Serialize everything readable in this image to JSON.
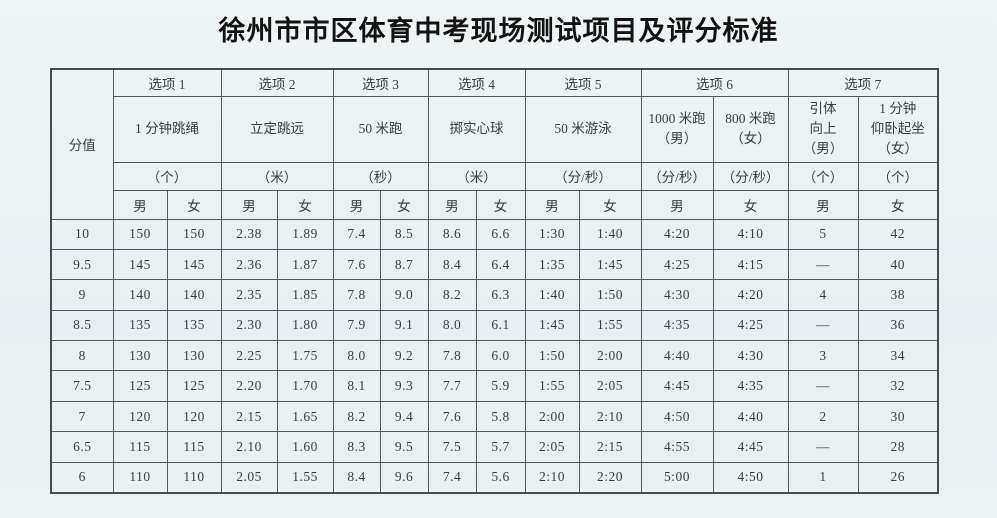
{
  "title": "徐州市市区体育中考现场测试项目及评分标准",
  "colors": {
    "page_background": "#e9f1f3",
    "border": "#54585c",
    "text": "#3a3e43",
    "title_text": "#131313"
  },
  "table": {
    "corner_label": "分值",
    "option_groups": [
      {
        "label": "选项 1",
        "event": "1 分钟跳绳",
        "unit": "（个）"
      },
      {
        "label": "选项 2",
        "event": "立定跳远",
        "unit": "（米）"
      },
      {
        "label": "选项 3",
        "event": "50 米跑",
        "unit": "（秒）"
      },
      {
        "label": "选项 4",
        "event": "掷实心球",
        "unit": "（米）"
      },
      {
        "label": "选项 5",
        "event": "50 米游泳",
        "unit": "（分/秒）"
      },
      {
        "label": "选项 6",
        "columns": [
          {
            "event": "1000 米跑\n（男）",
            "unit": "（分/秒）"
          },
          {
            "event": "800 米跑\n（女）",
            "unit": "（分/秒）"
          }
        ]
      },
      {
        "label": "选项 7",
        "columns": [
          {
            "event": "引体\n向上\n（男）",
            "unit": "（个）"
          },
          {
            "event": "1 分钟\n仰卧起坐\n（女）",
            "unit": "（个）"
          }
        ]
      }
    ],
    "gender_row": [
      "男",
      "女",
      "男",
      "女",
      "男",
      "女",
      "男",
      "女",
      "男",
      "女",
      "男",
      "女",
      "男",
      "女"
    ],
    "rows": [
      [
        "10",
        "150",
        "150",
        "2.38",
        "1.89",
        "7.4",
        "8.5",
        "8.6",
        "6.6",
        "1:30",
        "1:40",
        "4:20",
        "4:10",
        "5",
        "42"
      ],
      [
        "9.5",
        "145",
        "145",
        "2.36",
        "1.87",
        "7.6",
        "8.7",
        "8.4",
        "6.4",
        "1:35",
        "1:45",
        "4:25",
        "4:15",
        "—",
        "40"
      ],
      [
        "9",
        "140",
        "140",
        "2.35",
        "1.85",
        "7.8",
        "9.0",
        "8.2",
        "6.3",
        "1:40",
        "1:50",
        "4:30",
        "4:20",
        "4",
        "38"
      ],
      [
        "8.5",
        "135",
        "135",
        "2.30",
        "1.80",
        "7.9",
        "9.1",
        "8.0",
        "6.1",
        "1:45",
        "1:55",
        "4:35",
        "4:25",
        "—",
        "36"
      ],
      [
        "8",
        "130",
        "130",
        "2.25",
        "1.75",
        "8.0",
        "9.2",
        "7.8",
        "6.0",
        "1:50",
        "2:00",
        "4:40",
        "4:30",
        "3",
        "34"
      ],
      [
        "7.5",
        "125",
        "125",
        "2.20",
        "1.70",
        "8.1",
        "9.3",
        "7.7",
        "5.9",
        "1:55",
        "2:05",
        "4:45",
        "4:35",
        "—",
        "32"
      ],
      [
        "7",
        "120",
        "120",
        "2.15",
        "1.65",
        "8.2",
        "9.4",
        "7.6",
        "5.8",
        "2:00",
        "2:10",
        "4:50",
        "4:40",
        "2",
        "30"
      ],
      [
        "6.5",
        "115",
        "115",
        "2.10",
        "1.60",
        "8.3",
        "9.5",
        "7.5",
        "5.7",
        "2:05",
        "2:15",
        "4:55",
        "4:45",
        "—",
        "28"
      ],
      [
        "6",
        "110",
        "110",
        "2.05",
        "1.55",
        "8.4",
        "9.6",
        "7.4",
        "5.6",
        "2:10",
        "2:20",
        "5:00",
        "4:50",
        "1",
        "26"
      ]
    ]
  }
}
